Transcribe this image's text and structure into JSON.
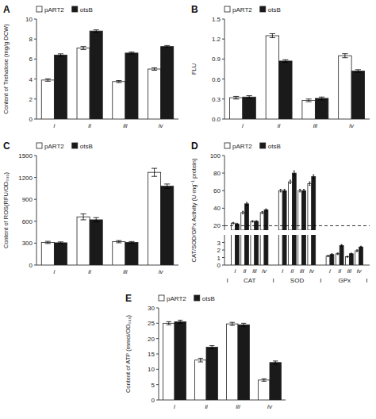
{
  "chart_data": [
    {
      "type": "bar",
      "title": "A",
      "ylabel": "Content of Trehalose (mg/g DCW)",
      "categories": [
        "i",
        "ii",
        "iii",
        "iv"
      ],
      "series": [
        {
          "name": "pART2",
          "color": "#ffffff",
          "values": [
            3.9,
            7.1,
            3.75,
            5.0
          ],
          "errors": [
            0.12,
            0.15,
            0.1,
            0.12
          ]
        },
        {
          "name": "otsB",
          "color": "#1a1a1a",
          "values": [
            6.4,
            8.8,
            6.6,
            7.25
          ],
          "errors": [
            0.12,
            0.12,
            0.1,
            0.1
          ]
        }
      ],
      "ylim": [
        0,
        10
      ],
      "yticks": [
        0,
        2,
        4,
        6,
        8,
        10
      ],
      "legend": "top",
      "grid": false
    },
    {
      "type": "bar",
      "title": "B",
      "ylabel": "FLU",
      "categories": [
        "i",
        "ii",
        "iii",
        "iv"
      ],
      "series": [
        {
          "name": "pART2",
          "color": "#ffffff",
          "values": [
            0.32,
            1.25,
            0.28,
            0.95
          ],
          "errors": [
            0.02,
            0.03,
            0.02,
            0.03
          ]
        },
        {
          "name": "otsB",
          "color": "#1a1a1a",
          "values": [
            0.33,
            0.87,
            0.31,
            0.72
          ],
          "errors": [
            0.02,
            0.02,
            0.02,
            0.02
          ]
        }
      ],
      "ylim": [
        0,
        1.5
      ],
      "yticks": [
        {
          "value": 0,
          "label": "0.0"
        },
        0.3,
        0.6,
        0.9,
        1.2,
        1.5
      ],
      "legend": "top",
      "grid": false
    },
    {
      "type": "bar",
      "title": "C",
      "ylabel": "Content of ROS(RFU/OD₆₀₀)",
      "categories": [
        "i",
        "ii",
        "iii",
        "iv"
      ],
      "series": [
        {
          "name": "pART2",
          "color": "#ffffff",
          "values": [
            310,
            660,
            320,
            1270
          ],
          "errors": [
            15,
            40,
            15,
            55
          ]
        },
        {
          "name": "otsB",
          "color": "#1a1a1a",
          "values": [
            305,
            620,
            310,
            1080
          ],
          "errors": [
            12,
            30,
            12,
            30
          ]
        }
      ],
      "ylim": [
        0,
        1500
      ],
      "yticks": [
        0,
        300,
        600,
        900,
        1200,
        1500
      ],
      "legend": "top",
      "grid": false
    },
    {
      "type": "bar",
      "title": "D",
      "ylabel": "CAT/SOD/GPx Activity (U·mg⁻¹ protein)",
      "groups": [
        "CAT",
        "SOD"
      ],
      "categories": [
        "i",
        "ii",
        "iii",
        "iv",
        "i",
        "ii",
        "iii",
        "iv"
      ],
      "series": [
        {
          "name": "pART2",
          "color": "#ffffff",
          "values": [
            23,
            35,
            25,
            35,
            60,
            70,
            60,
            68
          ],
          "errors": [
            0.8,
            1.5,
            0.8,
            1.2,
            1.5,
            2.0,
            1.5,
            2.0
          ]
        },
        {
          "name": "otsB",
          "color": "#1a1a1a",
          "values": [
            22,
            45,
            25,
            38,
            60,
            80,
            60,
            76
          ],
          "errors": [
            0.8,
            1.5,
            0.8,
            1.2,
            1.5,
            2.5,
            1.5,
            2.0
          ]
        }
      ],
      "ylim": [
        15,
        100
      ],
      "yticks": [
        20,
        40,
        60,
        80,
        100
      ],
      "hline": 20,
      "legend": "top",
      "grid": false
    },
    {
      "type": "bar",
      "groups": [
        "GPx"
      ],
      "categories": [
        "i",
        "ii",
        "iii",
        "iv"
      ],
      "series": [
        {
          "color": "#ffffff",
          "values": [
            1.2,
            1.5,
            1.1,
            1.9
          ],
          "errors": [
            0.08,
            0.1,
            0.07,
            0.12
          ]
        },
        {
          "color": "#1a1a1a",
          "values": [
            1.4,
            2.6,
            1.5,
            2.4
          ],
          "errors": [
            0.1,
            0.12,
            0.08,
            0.1
          ]
        }
      ],
      "ylim": [
        0,
        4
      ],
      "yticks": [
        0,
        1,
        2,
        3
      ],
      "annotations": [
        "I",
        "I",
        "I",
        "I"
      ],
      "grid": false
    },
    {
      "type": "bar",
      "title": "E",
      "ylabel": "Content of ATP (mmol/OD₆₀₀)",
      "categories": [
        "i",
        "ii",
        "iii",
        "iv"
      ],
      "series": [
        {
          "name": "pART2",
          "color": "#ffffff",
          "values": [
            25.0,
            13.0,
            24.8,
            6.5
          ],
          "errors": [
            0.5,
            0.6,
            0.5,
            0.4
          ]
        },
        {
          "name": "otsB",
          "color": "#1a1a1a",
          "values": [
            25.5,
            17.2,
            24.5,
            12.2
          ],
          "errors": [
            0.5,
            0.5,
            0.5,
            0.5
          ]
        }
      ],
      "ylim": [
        0,
        30
      ],
      "yticks": [
        0,
        5,
        10,
        15,
        20,
        25,
        30
      ],
      "legend": "top",
      "grid": false
    }
  ]
}
